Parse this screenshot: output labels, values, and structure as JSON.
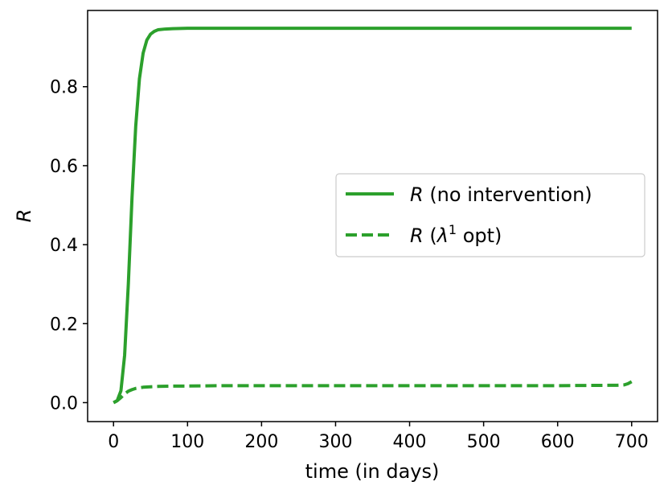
{
  "chart_data": {
    "type": "line",
    "xlabel": "time (in days)",
    "ylabel": "R",
    "xlim": [
      -35,
      735
    ],
    "ylim": [
      -0.048,
      0.993
    ],
    "xticks": [
      0,
      100,
      200,
      300,
      400,
      500,
      600,
      700
    ],
    "xtick_labels": [
      "0",
      "100",
      "200",
      "300",
      "400",
      "500",
      "600",
      "700"
    ],
    "yticks": [
      0.0,
      0.2,
      0.4,
      0.6,
      0.8
    ],
    "ytick_labels": [
      "0.0",
      "0.2",
      "0.4",
      "0.6",
      "0.8"
    ],
    "grid": false,
    "legend_position": "center-right",
    "colors": {
      "series": "#2ca02c",
      "axis": "#000000"
    },
    "series": [
      {
        "name_var": "R",
        "name_rest": " (no intervention)",
        "style": "solid",
        "x": [
          0,
          5,
          10,
          15,
          20,
          25,
          30,
          35,
          40,
          45,
          50,
          55,
          60,
          70,
          80,
          100,
          150,
          200,
          300,
          400,
          500,
          600,
          700
        ],
        "y": [
          0.0,
          0.005,
          0.03,
          0.12,
          0.3,
          0.52,
          0.7,
          0.82,
          0.885,
          0.918,
          0.933,
          0.94,
          0.944,
          0.946,
          0.947,
          0.948,
          0.948,
          0.948,
          0.948,
          0.948,
          0.948,
          0.948,
          0.948
        ]
      },
      {
        "name_var": "R",
        "name_open": " (",
        "name_lambda": "λ",
        "name_sup": "1",
        "name_close": " opt)",
        "style": "dashed",
        "x": [
          0,
          5,
          10,
          15,
          20,
          25,
          30,
          40,
          50,
          60,
          80,
          100,
          150,
          200,
          300,
          400,
          500,
          600,
          680,
          690,
          695,
          700
        ],
        "y": [
          0.0,
          0.005,
          0.013,
          0.022,
          0.029,
          0.033,
          0.036,
          0.039,
          0.04,
          0.041,
          0.042,
          0.042,
          0.043,
          0.043,
          0.043,
          0.043,
          0.043,
          0.043,
          0.044,
          0.045,
          0.048,
          0.053
        ]
      }
    ]
  }
}
